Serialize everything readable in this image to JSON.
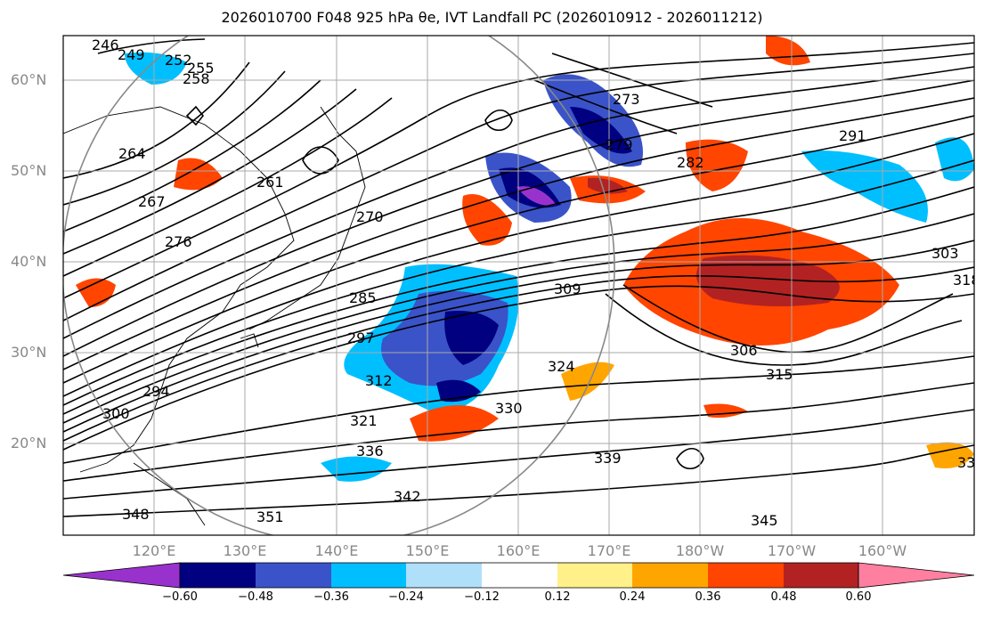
{
  "title": "2026010700 F048 925 hPa θe, IVT Landfall PC (2026010912 - 2026011212)",
  "lat_labels": [
    "60°N",
    "50°N",
    "40°N",
    "30°N",
    "20°N"
  ],
  "lon_labels": [
    "120°E",
    "130°E",
    "140°E",
    "150°E",
    "160°E",
    "170°E",
    "180°W",
    "170°W",
    "160°W"
  ],
  "contour_labels": [
    "246",
    "249",
    "252",
    "255",
    "258",
    "261",
    "264",
    "267",
    "270",
    "273",
    "276",
    "279",
    "282",
    "285",
    "291",
    "297",
    "300",
    "303",
    "306",
    "309",
    "312",
    "315",
    "318",
    "321",
    "324",
    "330",
    "336",
    "339",
    "342",
    "345",
    "348",
    "351",
    "33",
    "294"
  ],
  "colorbar": {
    "ticks": [
      "−0.60",
      "−0.48",
      "−0.36",
      "−0.24",
      "−0.12",
      "0.12",
      "0.24",
      "0.36",
      "0.48",
      "0.60"
    ],
    "colors": [
      "#9932cc",
      "#000080",
      "#3a53c8",
      "#00bfff",
      "#b0dffa",
      "#ffffff",
      "#fff08a",
      "#ffa500",
      "#ff4500",
      "#b22222",
      "#ff7fa0"
    ]
  }
}
